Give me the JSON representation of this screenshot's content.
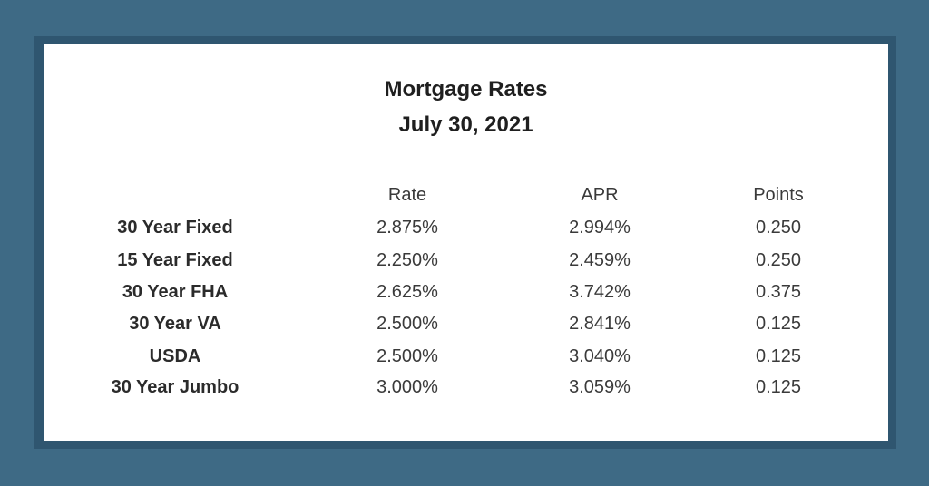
{
  "title": "Mortgage Rates",
  "date": "July 30, 2021",
  "columns": [
    "Rate",
    "APR",
    "Points"
  ],
  "rows": [
    {
      "label": "30 Year Fixed",
      "rate": "2.875%",
      "apr": "2.994%",
      "points": "0.250"
    },
    {
      "label": "15 Year Fixed",
      "rate": "2.250%",
      "apr": "2.459%",
      "points": "0.250"
    },
    {
      "label": "30 Year FHA",
      "rate": "2.625%",
      "apr": "3.742%",
      "points": "0.375"
    },
    {
      "label": "30 Year VA",
      "rate": "2.500%",
      "apr": "2.841%",
      "points": "0.125"
    },
    {
      "label": "USDA",
      "rate": "2.500%",
      "apr": "3.040%",
      "points": "0.125"
    },
    {
      "label": "30 Year Jumbo",
      "rate": "3.000%",
      "apr": "3.059%",
      "points": "0.125"
    }
  ],
  "colors": {
    "background": "#3e6a85",
    "frame": "#2f5670",
    "card": "#ffffff"
  }
}
